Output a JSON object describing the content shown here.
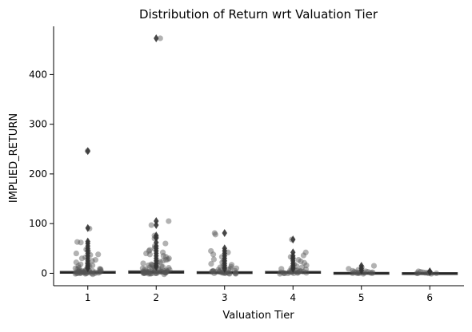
{
  "chart_data": {
    "type": "box",
    "overlay": "strip",
    "title": "Distribution of Return wrt Valuation Tier",
    "xlabel": "Valuation Tier",
    "ylabel": "IMPLIED_RETURN",
    "categories": [
      "1",
      "2",
      "3",
      "4",
      "5",
      "6"
    ],
    "ylim": [
      -25,
      497
    ],
    "yticks": [
      0,
      100,
      200,
      300,
      400
    ],
    "box_color": "#3a3a3a",
    "point_color": "#555555",
    "grid": false,
    "legend": "none",
    "boxes": [
      {
        "category": "1",
        "q1": 0.5,
        "median": 1.5,
        "q3": 3.5,
        "whisker_low": -1,
        "whisker_high": 8
      },
      {
        "category": "2",
        "q1": 0.5,
        "median": 1.5,
        "q3": 4.5,
        "whisker_low": -1,
        "whisker_high": 10
      },
      {
        "category": "3",
        "q1": 0,
        "median": 1,
        "q3": 3,
        "whisker_low": -1,
        "whisker_high": 7
      },
      {
        "category": "4",
        "q1": 0.5,
        "median": 1.5,
        "q3": 3.5,
        "whisker_low": -1,
        "whisker_high": 8
      },
      {
        "category": "5",
        "q1": 0,
        "median": 0.5,
        "q3": 1.5,
        "whisker_low": -0.5,
        "whisker_high": 3
      },
      {
        "category": "6",
        "q1": 0,
        "median": 0.3,
        "q3": 1,
        "whisker_low": -0.5,
        "whisker_high": 2
      }
    ],
    "outliers": [
      {
        "category": "1",
        "values": [
          246,
          91,
          64,
          60,
          55,
          50,
          45,
          40,
          35,
          30,
          25,
          20,
          16,
          13,
          10
        ]
      },
      {
        "category": "2",
        "values": [
          473,
          105,
          97,
          76,
          71,
          62,
          55,
          50,
          45,
          40,
          35,
          30,
          25,
          20,
          16,
          13
        ]
      },
      {
        "category": "3",
        "values": [
          81,
          50,
          45,
          40,
          35,
          30,
          25,
          20,
          16,
          12,
          9
        ]
      },
      {
        "category": "4",
        "values": [
          68,
          42,
          35,
          30,
          25,
          20,
          16,
          12,
          9
        ]
      },
      {
        "category": "5",
        "values": [
          15,
          10,
          6
        ]
      },
      {
        "category": "6",
        "values": [
          4,
          3
        ]
      }
    ],
    "points": [
      {
        "category": "1",
        "values": [
          246,
          90,
          63,
          62,
          48,
          45,
          40,
          38,
          37,
          32,
          30,
          27,
          25,
          22,
          20,
          18,
          16,
          15,
          14,
          12,
          11,
          10,
          9,
          8,
          8,
          7,
          7,
          6,
          6,
          5,
          5,
          5,
          4,
          4,
          4,
          3,
          3,
          3,
          3,
          2,
          2,
          2,
          2,
          2,
          1,
          1,
          1,
          1,
          1,
          1,
          0,
          0,
          0,
          0,
          0,
          0,
          -1,
          -1,
          -2
        ]
      },
      {
        "category": "2",
        "values": [
          473,
          105,
          97,
          76,
          73,
          70,
          60,
          55,
          50,
          47,
          45,
          42,
          40,
          38,
          35,
          33,
          30,
          28,
          27,
          25,
          23,
          22,
          20,
          18,
          17,
          16,
          15,
          14,
          13,
          12,
          11,
          10,
          10,
          9,
          8,
          8,
          7,
          7,
          6,
          6,
          5,
          5,
          5,
          4,
          4,
          4,
          3,
          3,
          3,
          3,
          2,
          2,
          2,
          2,
          2,
          1,
          1,
          1,
          1,
          1,
          1,
          0,
          0,
          0,
          0,
          0,
          0,
          -1,
          -1,
          -2
        ]
      },
      {
        "category": "3",
        "values": [
          81,
          78,
          45,
          42,
          38,
          33,
          28,
          25,
          22,
          19,
          17,
          15,
          13,
          12,
          10,
          9,
          8,
          7,
          6,
          5,
          5,
          4,
          4,
          3,
          3,
          3,
          2,
          2,
          2,
          1,
          1,
          1,
          1,
          0,
          0,
          0,
          0,
          -1,
          -1
        ]
      },
      {
        "category": "4",
        "values": [
          68,
          42,
          36,
          33,
          30,
          27,
          24,
          21,
          18,
          16,
          14,
          12,
          10,
          9,
          8,
          7,
          6,
          5,
          5,
          4,
          4,
          3,
          3,
          3,
          2,
          2,
          2,
          1,
          1,
          1,
          1,
          0,
          0,
          0,
          0,
          -1
        ]
      },
      {
        "category": "5",
        "values": [
          15,
          12,
          9,
          7,
          5,
          4,
          3,
          3,
          2,
          2,
          1,
          1,
          1,
          0,
          0,
          0,
          0,
          -1
        ]
      },
      {
        "category": "6",
        "values": [
          4,
          3,
          2,
          2,
          1,
          1,
          1,
          0,
          0,
          0,
          0,
          -1
        ]
      }
    ]
  }
}
